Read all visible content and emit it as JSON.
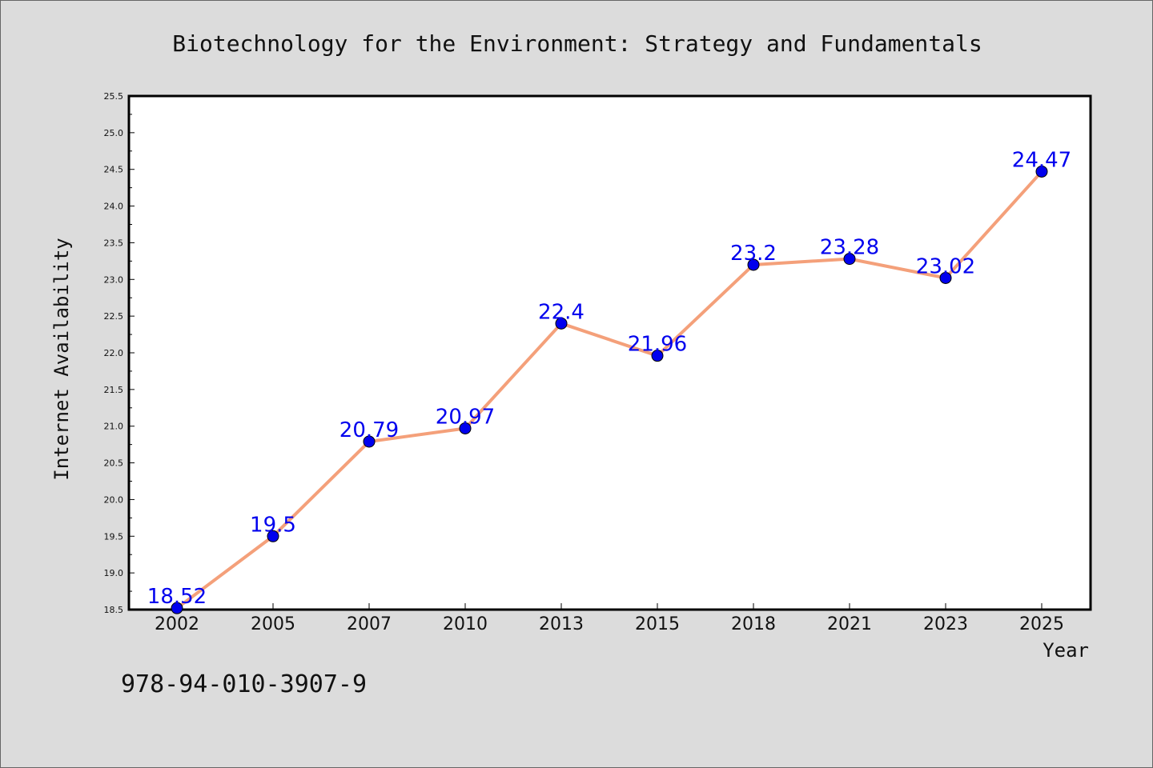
{
  "chart_data": {
    "type": "line",
    "title": "Biotechnology for the Environment: Strategy and Fundamentals",
    "xlabel": "Year",
    "ylabel": "Internet Availability",
    "categories": [
      "2002",
      "2005",
      "2007",
      "2010",
      "2013",
      "2015",
      "2018",
      "2021",
      "2023",
      "2025"
    ],
    "series": [
      {
        "values": [
          18.52,
          19.5,
          20.79,
          20.97,
          22.4,
          21.96,
          23.2,
          23.28,
          23.02,
          24.47
        ],
        "data_labels": [
          "18.52",
          "19.5",
          "20.79",
          "20.97",
          "22.4",
          "21.96",
          "23.2",
          "23.28",
          "23.02",
          "24.47"
        ],
        "line_color": "#f4a07a",
        "marker_color": "#0000ee",
        "label_color": "#0000ee"
      }
    ],
    "ylim": [
      18.5,
      25.5
    ],
    "yticks": [
      "18.5",
      "19.0",
      "19.5",
      "20.0",
      "20.5",
      "21.0",
      "21.5",
      "22.0",
      "22.5",
      "23.0",
      "23.5",
      "24.0",
      "24.5",
      "25.0",
      "25.5"
    ],
    "grid": false,
    "legend": "none"
  },
  "footer_code": "978-94-010-3907-9"
}
